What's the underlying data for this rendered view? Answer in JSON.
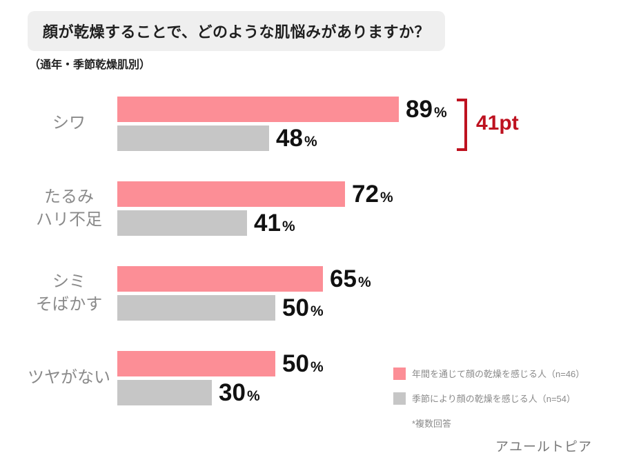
{
  "title": "顔が乾燥することで、どのような肌悩みがありますか？",
  "subtitle": "（通年・季節乾燥肌別）",
  "chart_data": {
    "type": "bar",
    "orientation": "horizontal",
    "title": "顔が乾燥することで、どのような肌悩みがありますか？",
    "subtitle": "（通年・季節乾燥肌別）",
    "value_suffix": "%",
    "xlim": [
      0,
      100
    ],
    "grid": false,
    "legend_position": "bottom-right",
    "categories": [
      "シワ",
      "たるみ\nハリ不足",
      "シミ\nそばかす",
      "ツヤがない"
    ],
    "series": [
      {
        "name": "年間を通じて顔の乾燥を感じる人（n=46）",
        "color": "#FC8E96",
        "values": [
          89,
          72,
          65,
          50
        ]
      },
      {
        "name": "季節により顔の乾燥を感じる人（n=54）",
        "color": "#C6C6C6",
        "values": [
          48,
          41,
          50,
          30
        ]
      }
    ],
    "annotation": {
      "text": "41pt",
      "color": "#BE1220",
      "category_index": 0
    }
  },
  "legend": {
    "items": [
      {
        "label": "年間を通じて顔の乾燥を感じる人（n=46）",
        "color": "#FC8E96"
      },
      {
        "label": "季節により顔の乾燥を感じる人（n=54）",
        "color": "#C6C6C6"
      }
    ],
    "footnote": "*複数回答"
  },
  "brand": "アユールトピア"
}
